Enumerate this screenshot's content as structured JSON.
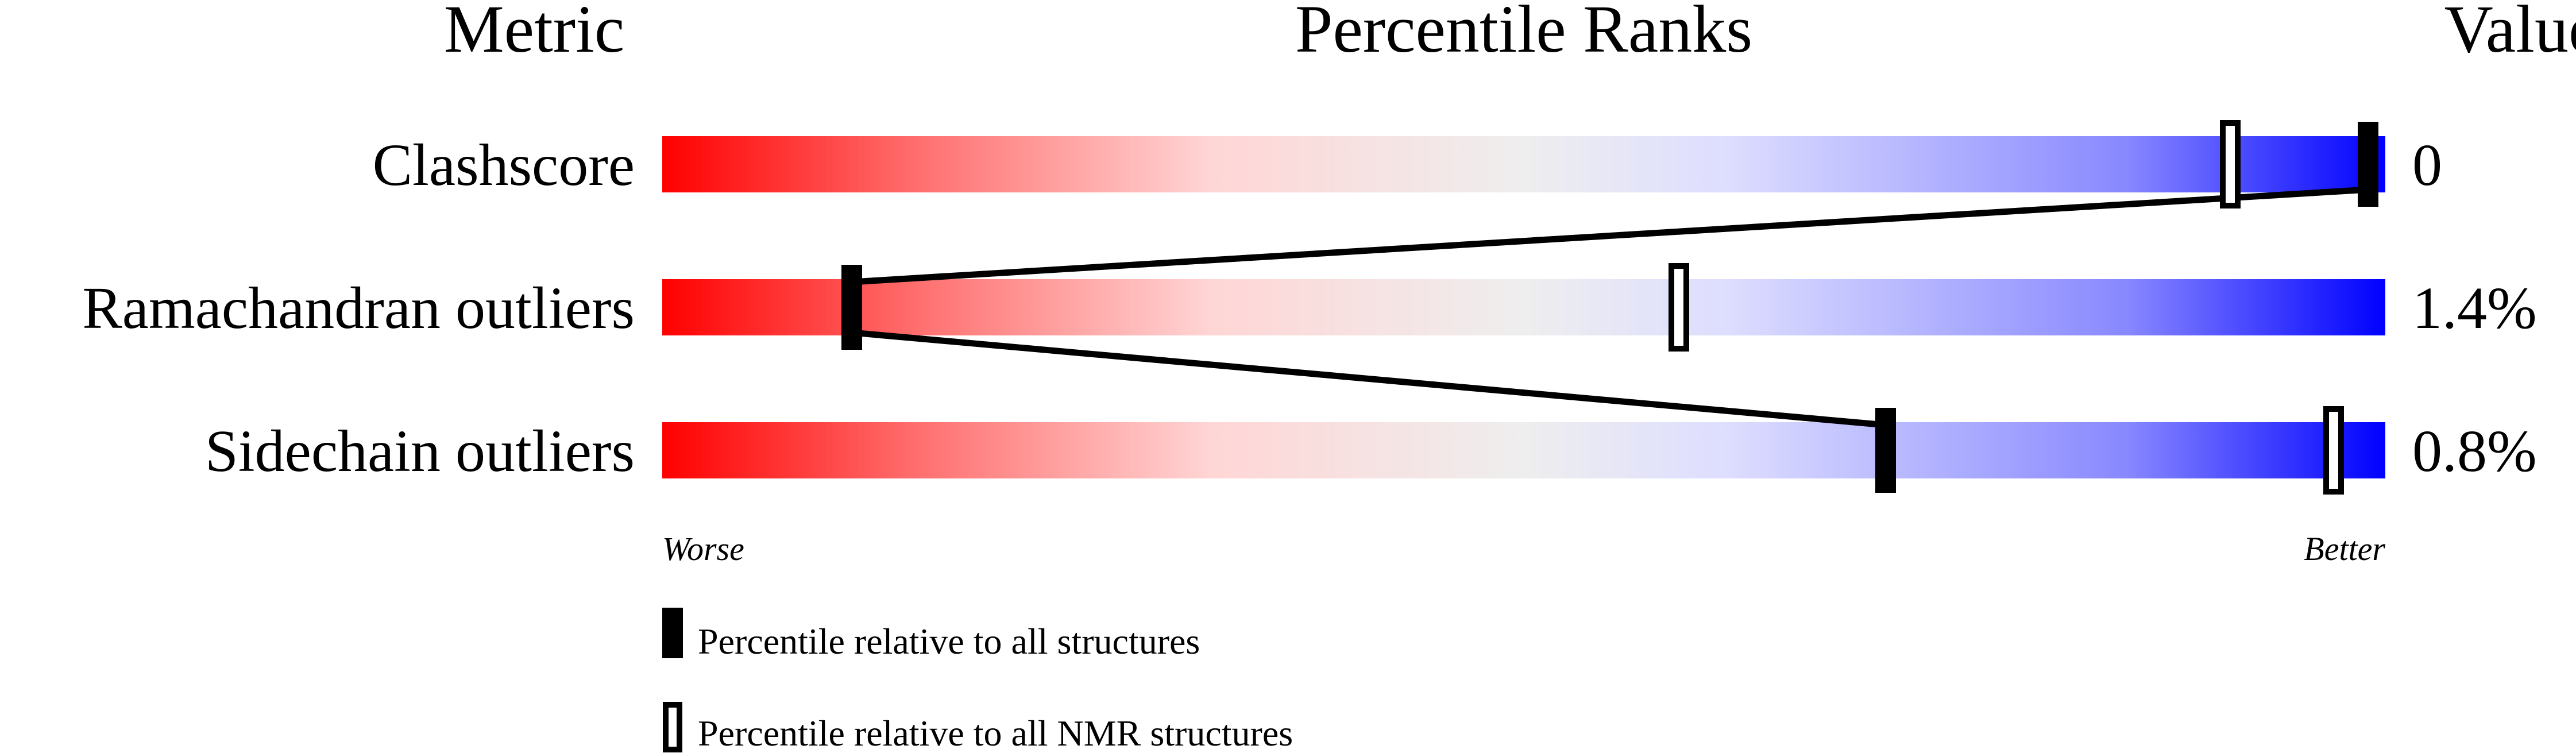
{
  "chart_data": {
    "type": "percentile-bars",
    "headers": {
      "metric": "Metric",
      "ranks": "Percentile Ranks",
      "value": "Value"
    },
    "xlim": [
      0,
      100
    ],
    "axis_labels": {
      "worse": "Worse",
      "better": "Better"
    },
    "gradient_colors": [
      "#ff0000",
      "#ff7070",
      "#ffd6d6",
      "#eeeeee",
      "#ddddff",
      "#8888ff",
      "#0000ff"
    ],
    "metrics": [
      {
        "name": "Clashscore",
        "value": "0",
        "percentile_all": 99,
        "percentile_nmr": 91
      },
      {
        "name": "Ramachandran outliers",
        "value": "1.4%",
        "percentile_all": 11,
        "percentile_nmr": 59
      },
      {
        "name": "Sidechain outliers",
        "value": "0.8%",
        "percentile_all": 71,
        "percentile_nmr": 97
      }
    ],
    "legend": [
      {
        "marker": "filled",
        "label": "Percentile relative to all structures"
      },
      {
        "marker": "open",
        "label": "Percentile relative to all NMR structures"
      }
    ]
  }
}
